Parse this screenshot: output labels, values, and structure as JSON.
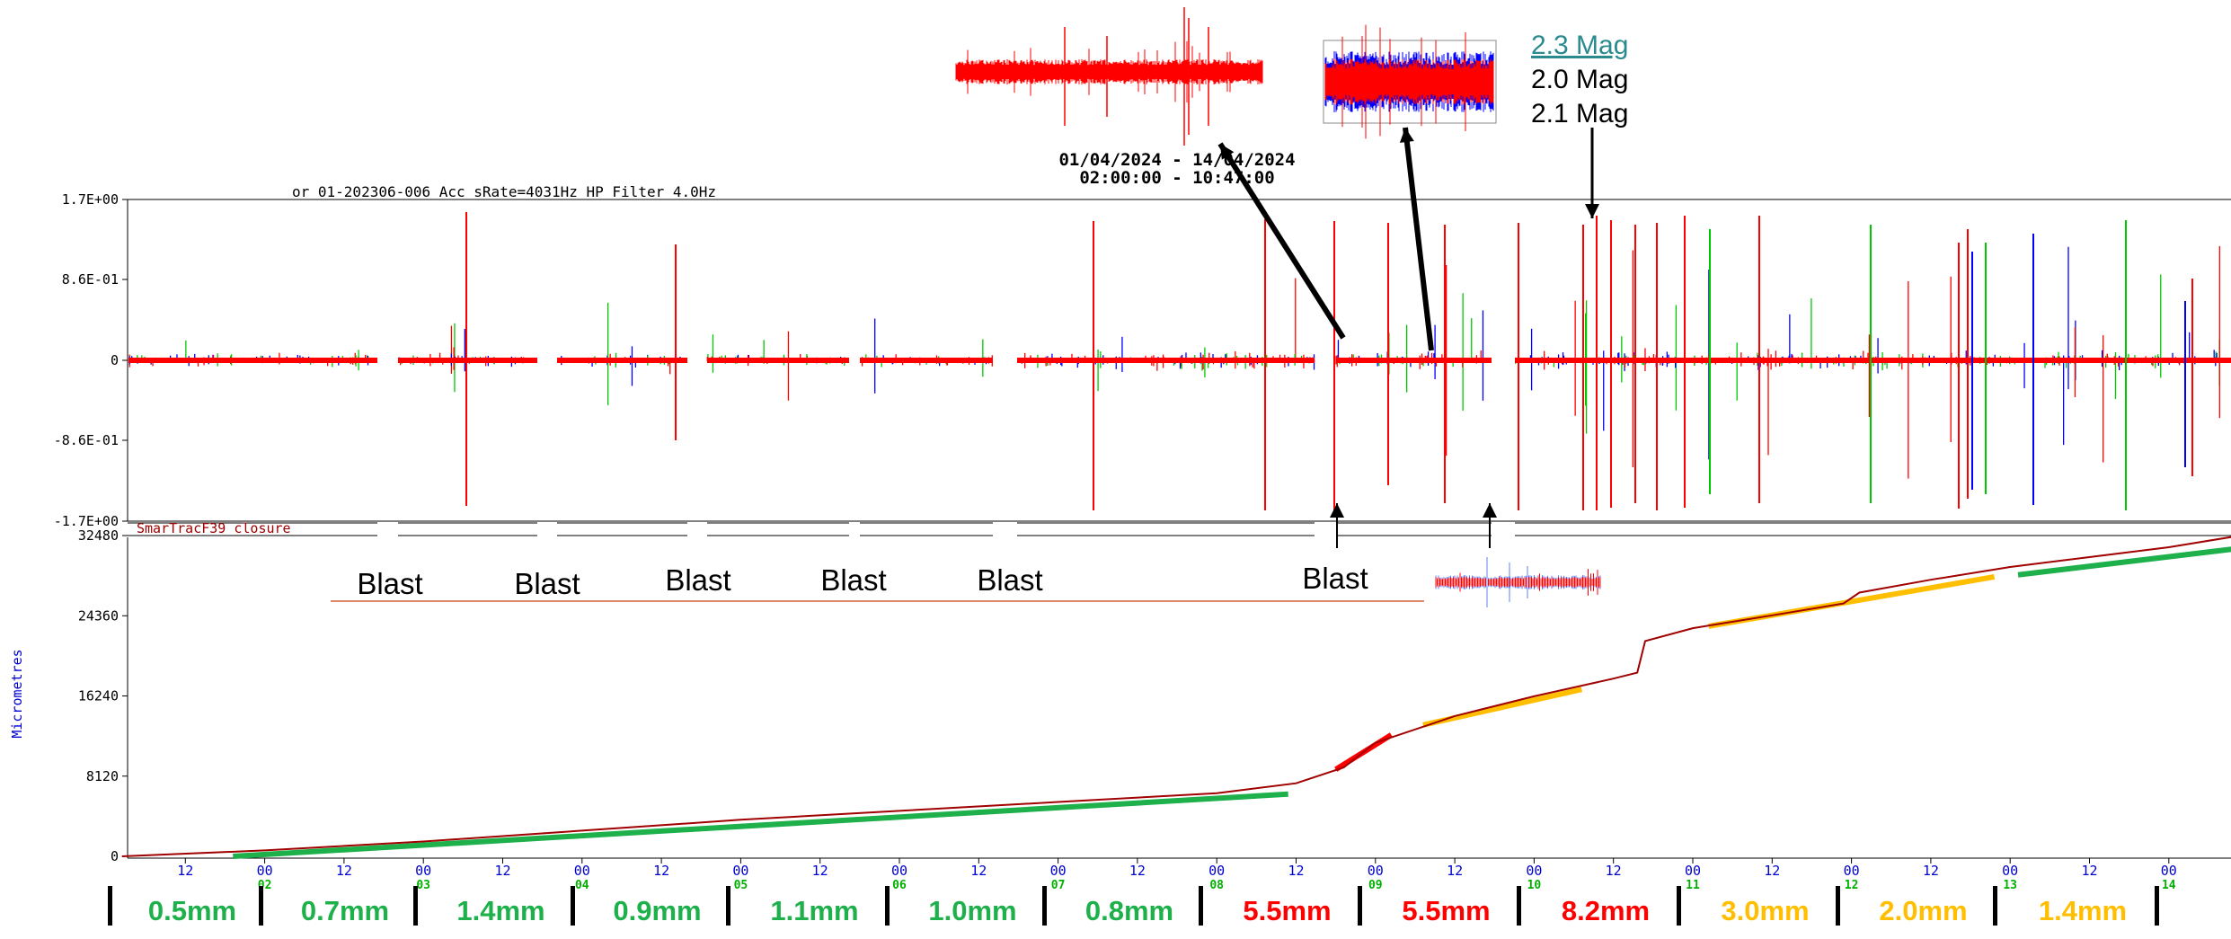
{
  "colors": {
    "red": "#ff0000",
    "green": "#00c800",
    "blue": "#0000ff",
    "dark_red": "#a00000",
    "trend_green": "#1db04b",
    "trend_orange": "#ffbf00",
    "trend_red": "#ff0000",
    "mag_link": "#2a8a8f",
    "tick_blue": "#0000d0",
    "tick_green": "#00b000"
  },
  "header": {
    "channel": "or 01-202306-006  Acc  sRate=4031Hz  HP Filter 4.0Hz",
    "date_range": "01/04/2024 - 14/04/2024",
    "time_range": "02:00:00 - 10:47:00",
    "closure_label": "SmarTracF39 closure"
  },
  "magnitudes": [
    "2.3 Mag",
    "2.0 Mag",
    "2.1 Mag"
  ],
  "blast_label": "Blast",
  "chart_data": [
    {
      "type": "line",
      "title": "",
      "series": [
        {
          "name": "",
          "description_only_visual": true
        }
      ],
      "yticks": [
        "1.7E+00",
        "8.6E-01",
        "0",
        "-8.6E-01",
        "-1.7E+00"
      ],
      "ylim": [
        -1.7,
        1.7
      ],
      "xlim_days": [
        1,
        14
      ]
    },
    {
      "type": "line",
      "ylabel": "Micrometres",
      "ylim": [
        0,
        32480
      ],
      "yticks": [
        "32480",
        "24360",
        "16240",
        "8120",
        "0"
      ],
      "x_day_labels": [
        "02",
        "03",
        "04",
        "05",
        "06",
        "07",
        "08",
        "09",
        "10",
        "11",
        "12",
        "13",
        "14"
      ],
      "x_hour_labels": [
        "12",
        "00",
        "12"
      ],
      "closure": {
        "x": [
          1.1,
          2.0,
          3.0,
          4.0,
          5.0,
          6.0,
          7.0,
          8.0,
          8.5,
          8.8,
          9.0,
          9.5,
          10.0,
          10.5,
          10.65,
          10.7,
          11.0,
          11.5,
          11.95,
          12.05,
          12.5,
          13.0,
          13.5,
          14.0,
          14.45
        ],
        "y": [
          0,
          600,
          1500,
          2600,
          3700,
          4600,
          5500,
          6400,
          7400,
          9000,
          11500,
          14200,
          16200,
          18000,
          18600,
          21800,
          23100,
          24400,
          25600,
          26700,
          28000,
          29300,
          30300,
          31300,
          32480
        ]
      }
    }
  ],
  "trend_lines": [
    {
      "x": [
        1.8,
        8.45
      ],
      "y": [
        0,
        6300
      ],
      "color": "trend_green"
    },
    {
      "x": [
        8.75,
        9.1
      ],
      "y": [
        8800,
        12300
      ],
      "color": "trend_red"
    },
    {
      "x": [
        9.3,
        10.3
      ],
      "y": [
        13300,
        16900
      ],
      "color": "trend_orange"
    },
    {
      "x": [
        11.1,
        12.9
      ],
      "y": [
        23300,
        28300
      ],
      "color": "trend_orange"
    },
    {
      "x": [
        13.05,
        14.45
      ],
      "y": [
        28500,
        31200
      ],
      "color": "trend_green"
    }
  ],
  "daily_labels": [
    {
      "text": "0.5mm",
      "color": "trend_green"
    },
    {
      "text": "0.7mm",
      "color": "trend_green"
    },
    {
      "text": "1.4mm",
      "color": "trend_green"
    },
    {
      "text": "0.9mm",
      "color": "trend_green"
    },
    {
      "text": "1.1mm",
      "color": "trend_green"
    },
    {
      "text": "1.0mm",
      "color": "trend_green"
    },
    {
      "text": "0.8mm",
      "color": "trend_green"
    },
    {
      "text": "5.5mm",
      "color": "trend_red"
    },
    {
      "text": "5.5mm",
      "color": "trend_red"
    },
    {
      "text": "8.2mm",
      "color": "trend_red"
    },
    {
      "text": "3.0mm",
      "color": "trend_orange"
    },
    {
      "text": "2.0mm",
      "color": "trend_orange"
    },
    {
      "text": "1.4mm",
      "color": "trend_orange"
    }
  ]
}
